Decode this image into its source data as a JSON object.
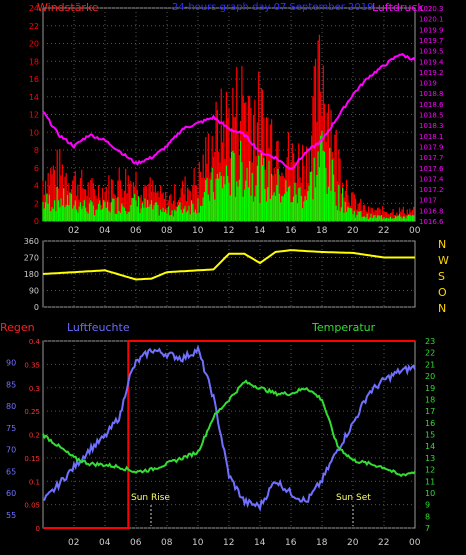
{
  "panel1": {
    "title_left": "Windstärke",
    "title_center": "24-hours graph day  07 September 2019",
    "title_right": "Luftdruck",
    "left_ticks": [
      "0",
      "2",
      "4",
      "6",
      "8",
      "10",
      "12",
      "14",
      "16",
      "18",
      "20",
      "22",
      "24"
    ],
    "right_ticks": [
      "1016.6",
      "1016.8",
      "1017",
      "1017.2",
      "1017.4",
      "1017.6",
      "1017.7",
      "1017.9",
      "1018.1",
      "1018.3",
      "1018.5",
      "1018.6",
      "1018.8",
      "1019",
      "1019.2",
      "1019.4",
      "1019.5",
      "1019.7",
      "1019.9",
      "1020.1",
      "1020.3"
    ],
    "colors": {
      "wind_gust": "#ff0000",
      "wind_avg": "#00ff00",
      "pressure": "#ff00ff",
      "left_axis": "#ff0000",
      "right_axis": "#ff00ff"
    }
  },
  "panel2": {
    "left_ticks": [
      "0",
      "90",
      "180",
      "270",
      "360"
    ],
    "direction_letters": [
      "N",
      "W",
      "S",
      "O",
      "N"
    ],
    "color": "#ffff00"
  },
  "panel3": {
    "label_rain": "Regen",
    "label_humidity": "Luftfeuchte",
    "label_temperature": "Temperatur",
    "rain_ticks": [
      "0",
      "0.05",
      "0.1",
      "0.15",
      "0.2",
      "0.25",
      "0.3",
      "0.35",
      "0.4"
    ],
    "humidity_ticks": [
      "55",
      "60",
      "65",
      "70",
      "75",
      "80",
      "85",
      "90"
    ],
    "temp_ticks": [
      "7",
      "8",
      "9",
      "10",
      "11",
      "12",
      "13",
      "14",
      "15",
      "16",
      "17",
      "18",
      "19",
      "20",
      "21",
      "22",
      "23"
    ],
    "sunrise_label": "Sun Rise",
    "sunset_label": "Sun Set",
    "colors": {
      "rain": "#ff0000",
      "humidity": "#7070ff",
      "temperature": "#33dd33"
    }
  },
  "x_tick_labels": [
    "02",
    "04",
    "06",
    "08",
    "10",
    "12",
    "14",
    "16",
    "18",
    "20",
    "22",
    "00"
  ],
  "chart_data": [
    {
      "type": "line",
      "title": "24-hours graph day  07 September 2019",
      "xlabel": "",
      "x_hours": [
        0,
        1,
        2,
        3,
        4,
        5,
        6,
        7,
        8,
        9,
        10,
        11,
        12,
        13,
        14,
        15,
        16,
        17,
        18,
        19,
        20,
        21,
        22,
        23,
        24
      ],
      "series": [
        {
          "name": "Windstärke",
          "axis": "left",
          "ylim": [
            0,
            24
          ],
          "values": [
            4,
            5,
            4,
            3,
            3,
            4,
            4,
            3,
            2,
            3,
            4,
            8,
            10,
            12,
            10,
            8,
            6,
            6,
            15,
            6,
            2,
            1,
            1,
            1,
            1
          ]
        },
        {
          "name": "Luftdruck",
          "axis": "right",
          "ylim": [
            1016.6,
            1020.3
          ],
          "values": [
            1018.5,
            1018.1,
            1017.9,
            1018.1,
            1018.0,
            1017.8,
            1017.6,
            1017.7,
            1017.9,
            1018.2,
            1018.3,
            1018.4,
            1018.2,
            1018.1,
            1017.8,
            1017.7,
            1017.5,
            1017.8,
            1018.0,
            1018.4,
            1018.8,
            1019.1,
            1019.3,
            1019.5,
            1019.4
          ]
        }
      ]
    },
    {
      "type": "line",
      "xlabel": "",
      "ylim": [
        0,
        360
      ],
      "x_hours": [
        0,
        2,
        4,
        5,
        6,
        7,
        8,
        10,
        11,
        12,
        13,
        14,
        15,
        16,
        18,
        20,
        22,
        24
      ],
      "series": [
        {
          "name": "",
          "values": [
            180,
            190,
            200,
            175,
            150,
            155,
            190,
            200,
            205,
            290,
            290,
            240,
            300,
            310,
            300,
            295,
            270,
            270
          ]
        }
      ]
    },
    {
      "type": "line",
      "xlabel": "",
      "x_hours": [
        0,
        1,
        2,
        3,
        4,
        5,
        5.5,
        6,
        7,
        8,
        9,
        10,
        11,
        12,
        13,
        14,
        15,
        16,
        17,
        18,
        19,
        20,
        21,
        22,
        23,
        24
      ],
      "series": [
        {
          "name": "Regen",
          "axis": "left",
          "ylim": [
            0,
            0.4
          ],
          "values": [
            0,
            0,
            0,
            0,
            0,
            0,
            0.4,
            0.4,
            0.4,
            0.4,
            0.4,
            0.4,
            0.4,
            0.4,
            0.4,
            0.4,
            0.4,
            0.4,
            0.4,
            0.4,
            0.4,
            0.4,
            0.4,
            0.4,
            0.4,
            0.4
          ]
        },
        {
          "name": "Luftfeuchte",
          "axis": "left",
          "ylim": [
            52,
            95
          ],
          "values": [
            58,
            62,
            66,
            70,
            73,
            78,
            86,
            90,
            93,
            92,
            91,
            93,
            82,
            64,
            58,
            57,
            63,
            60,
            58,
            63,
            70,
            76,
            83,
            86,
            88,
            89
          ]
        },
        {
          "name": "Temperatur",
          "axis": "right",
          "ylim": [
            7,
            23
          ],
          "values": [
            15,
            14,
            13,
            12.5,
            12.4,
            12.2,
            12,
            11.8,
            12,
            12.5,
            13,
            13.5,
            16.5,
            18,
            19.5,
            19,
            18.5,
            18.5,
            19,
            18,
            14,
            12.8,
            12.5,
            12.2,
            11.5,
            11.8
          ]
        }
      ]
    }
  ]
}
